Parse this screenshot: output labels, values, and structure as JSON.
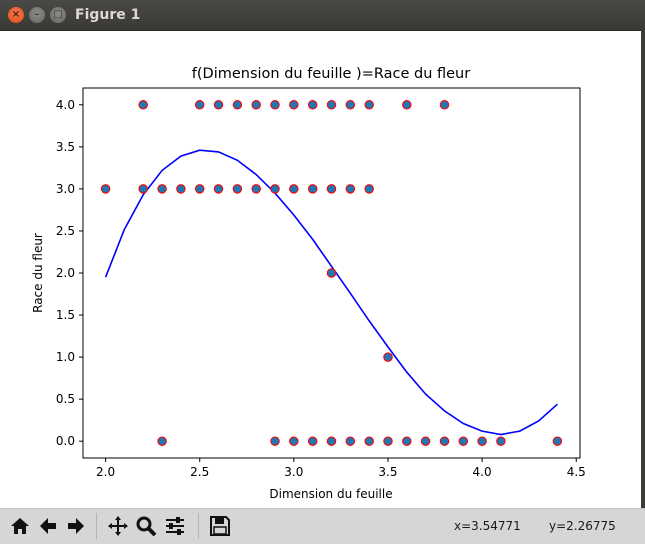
{
  "window": {
    "title": "Figure 1",
    "close_glyph": "×",
    "min_glyph": "–",
    "max_glyph": "□"
  },
  "colors": {
    "line": "#0000ff",
    "marker_face": "#1f77b4",
    "marker_edge": "#ff0000"
  },
  "toolbar": {
    "icons": [
      "home-icon",
      "back-arrow-icon",
      "forward-arrow-icon",
      "pan-icon",
      "zoom-icon",
      "configure-subplots-icon",
      "save-icon"
    ],
    "x_readout": "x=3.54771",
    "y_readout": "y=2.26775"
  },
  "chart_data": {
    "type": "scatter",
    "title": "f(Dimension du feuille )=Race du fleur",
    "xlabel": "Dimension du feuille",
    "ylabel": "Race du fleur",
    "xlim": [
      1.88,
      4.52
    ],
    "ylim": [
      -0.2,
      4.2
    ],
    "xticks": [
      2.0,
      2.5,
      3.0,
      3.5,
      4.0,
      4.5
    ],
    "yticks": [
      0.0,
      0.5,
      1.0,
      1.5,
      2.0,
      2.5,
      3.0,
      3.5,
      4.0
    ],
    "grid": false,
    "series": [
      {
        "kind": "scatter",
        "points": [
          [
            2.2,
            4
          ],
          [
            2.5,
            4
          ],
          [
            2.6,
            4
          ],
          [
            2.7,
            4
          ],
          [
            2.8,
            4
          ],
          [
            2.9,
            4
          ],
          [
            3.0,
            4
          ],
          [
            3.1,
            4
          ],
          [
            3.2,
            4
          ],
          [
            3.3,
            4
          ],
          [
            3.4,
            4
          ],
          [
            3.6,
            4
          ],
          [
            3.8,
            4
          ],
          [
            2.0,
            3
          ],
          [
            2.2,
            3
          ],
          [
            2.3,
            3
          ],
          [
            2.4,
            3
          ],
          [
            2.5,
            3
          ],
          [
            2.6,
            3
          ],
          [
            2.7,
            3
          ],
          [
            2.8,
            3
          ],
          [
            2.9,
            3
          ],
          [
            3.0,
            3
          ],
          [
            3.1,
            3
          ],
          [
            3.2,
            3
          ],
          [
            3.3,
            3
          ],
          [
            3.4,
            3
          ],
          [
            3.2,
            2
          ],
          [
            3.5,
            1
          ],
          [
            2.3,
            0
          ],
          [
            2.9,
            0
          ],
          [
            3.0,
            0
          ],
          [
            3.1,
            0
          ],
          [
            3.2,
            0
          ],
          [
            3.3,
            0
          ],
          [
            3.4,
            0
          ],
          [
            3.5,
            0
          ],
          [
            3.6,
            0
          ],
          [
            3.7,
            0
          ],
          [
            3.8,
            0
          ],
          [
            3.9,
            0
          ],
          [
            4.0,
            0
          ],
          [
            4.1,
            0
          ],
          [
            4.4,
            0
          ]
        ]
      },
      {
        "kind": "line",
        "points": [
          [
            2.0,
            1.95
          ],
          [
            2.1,
            2.52
          ],
          [
            2.2,
            2.93
          ],
          [
            2.3,
            3.22
          ],
          [
            2.4,
            3.39
          ],
          [
            2.5,
            3.46
          ],
          [
            2.6,
            3.44
          ],
          [
            2.7,
            3.34
          ],
          [
            2.8,
            3.17
          ],
          [
            2.9,
            2.95
          ],
          [
            3.0,
            2.69
          ],
          [
            3.1,
            2.4
          ],
          [
            3.2,
            2.08
          ],
          [
            3.3,
            1.76
          ],
          [
            3.4,
            1.43
          ],
          [
            3.5,
            1.12
          ],
          [
            3.6,
            0.82
          ],
          [
            3.7,
            0.56
          ],
          [
            3.8,
            0.36
          ],
          [
            3.9,
            0.21
          ],
          [
            4.0,
            0.12
          ],
          [
            4.1,
            0.08
          ],
          [
            4.2,
            0.12
          ],
          [
            4.3,
            0.24
          ],
          [
            4.4,
            0.44
          ]
        ]
      }
    ]
  }
}
